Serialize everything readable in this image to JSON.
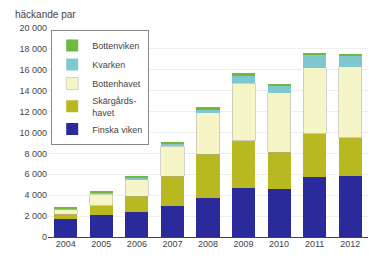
{
  "chart_data": {
    "type": "bar",
    "stacked": true,
    "ylabel": "häckande par",
    "categories": [
      "2004",
      "2005",
      "2006",
      "2007",
      "2008",
      "2009",
      "2010",
      "2011",
      "2012"
    ],
    "series": [
      {
        "name": "Finska viken",
        "color": "#2a2a9a",
        "values": [
          1700,
          2100,
          2400,
          3000,
          3700,
          4700,
          4600,
          5700,
          5800
        ]
      },
      {
        "name": "Skärgårds-\nhavet",
        "color": "#b8b820",
        "values": [
          500,
          900,
          1500,
          2800,
          4200,
          4500,
          3500,
          4200,
          3700
        ]
      },
      {
        "name": "Bottenhavet",
        "color": "#f5f5c8",
        "values": [
          400,
          1100,
          1600,
          2900,
          4000,
          5500,
          5700,
          6300,
          6800
        ]
      },
      {
        "name": "Kvarken",
        "color": "#80c8d0",
        "values": [
          100,
          200,
          200,
          200,
          300,
          700,
          700,
          1200,
          1000
        ]
      },
      {
        "name": "Bottenviken",
        "color": "#70b840",
        "values": [
          100,
          100,
          100,
          100,
          200,
          300,
          100,
          200,
          200
        ]
      }
    ],
    "ylim": [
      0,
      20000
    ],
    "yticks": [
      0,
      {
        "value": 2000,
        "label": "2 000"
      },
      {
        "value": 4000,
        "label": "4 000"
      },
      {
        "value": 6000,
        "label": "6 000"
      },
      {
        "value": 8000,
        "label": "8 000"
      },
      {
        "value": 10000,
        "label": "10 000"
      },
      {
        "value": 12000,
        "label": "12 000"
      },
      {
        "value": 14000,
        "label": "14 000"
      },
      {
        "value": 16000,
        "label": "16 000"
      },
      {
        "value": 18000,
        "label": "18 000"
      },
      {
        "value": 20000,
        "label": "20 000"
      }
    ],
    "grid": true,
    "legend": "upper left"
  }
}
